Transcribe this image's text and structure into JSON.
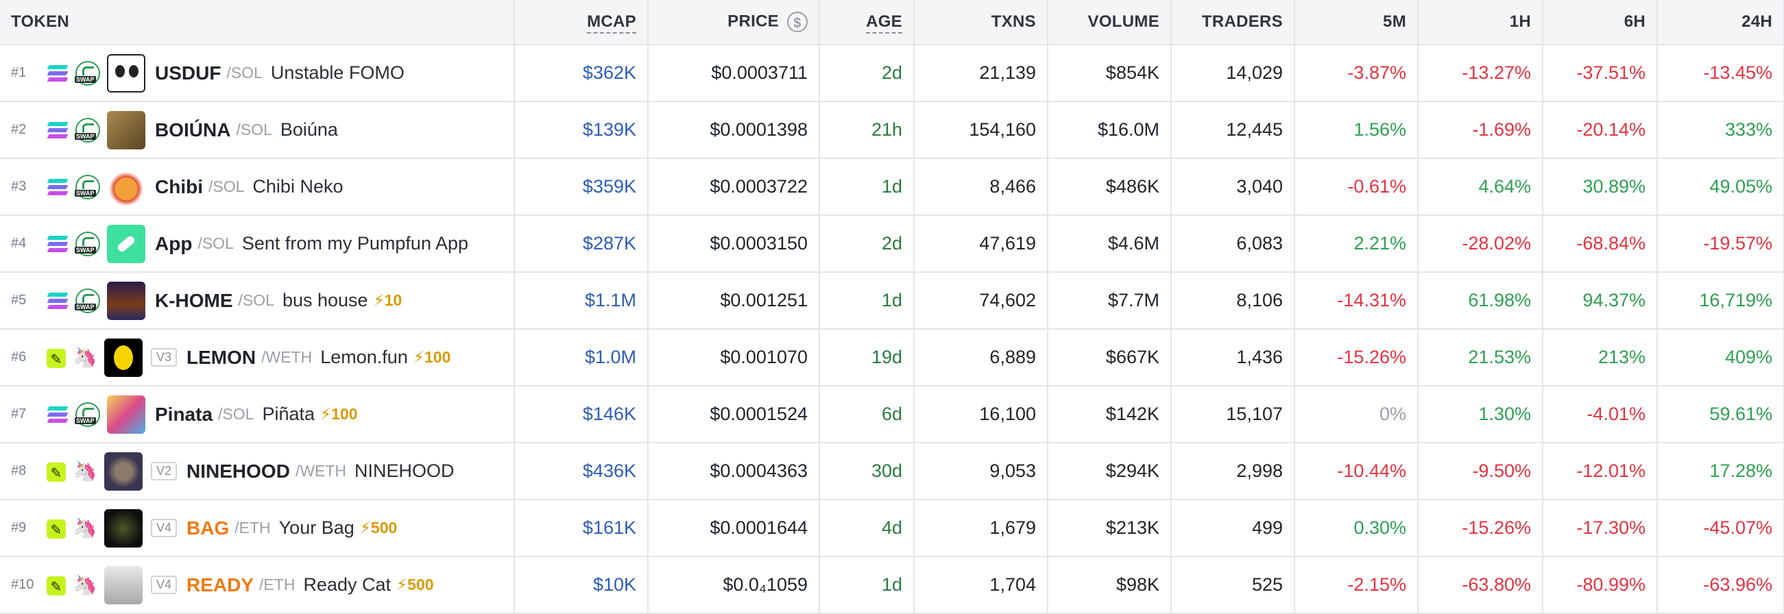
{
  "columns": {
    "token": "TOKEN",
    "mcap": "MCAP",
    "price": "PRICE",
    "age": "AGE",
    "txns": "TXNS",
    "volume": "VOLUME",
    "traders": "TRADERS",
    "m5": "5M",
    "h1": "1H",
    "h6": "6H",
    "h24": "24H",
    "price_currency_icon": "$"
  },
  "rows": [
    {
      "rank": "#1",
      "chain": "solana-icon",
      "dex": "swap-icon",
      "version": "",
      "symbol": "USDUF",
      "quote": "/SOL",
      "name": "Unstable FOMO",
      "boost": "",
      "mcap": "$362K",
      "price": "$0.0003711",
      "age": "2d",
      "txns": "21,139",
      "volume": "$854K",
      "traders": "14,029",
      "m5": "-3.87%",
      "h1": "-13.27%",
      "h6": "-37.51%",
      "h24": "-13.45%"
    },
    {
      "rank": "#2",
      "chain": "solana-icon",
      "dex": "swap-icon",
      "version": "",
      "symbol": "BOIÚNA",
      "quote": "/SOL",
      "name": "Boiúna",
      "boost": "",
      "mcap": "$139K",
      "price": "$0.0001398",
      "age": "21h",
      "txns": "154,160",
      "volume": "$16.0M",
      "traders": "12,445",
      "m5": "1.56%",
      "h1": "-1.69%",
      "h6": "-20.14%",
      "h24": "333%"
    },
    {
      "rank": "#3",
      "chain": "solana-icon",
      "dex": "swap-icon",
      "version": "",
      "symbol": "Chibi",
      "quote": "/SOL",
      "name": "Chibi Neko",
      "boost": "",
      "mcap": "$359K",
      "price": "$0.0003722",
      "age": "1d",
      "txns": "8,466",
      "volume": "$486K",
      "traders": "3,040",
      "m5": "-0.61%",
      "h1": "4.64%",
      "h6": "30.89%",
      "h24": "49.05%"
    },
    {
      "rank": "#4",
      "chain": "solana-icon",
      "dex": "swap-icon",
      "version": "",
      "symbol": "App",
      "quote": "/SOL",
      "name": "Sent from my Pumpfun App",
      "boost": "",
      "mcap": "$287K",
      "price": "$0.0003150",
      "age": "2d",
      "txns": "47,619",
      "volume": "$4.6M",
      "traders": "6,083",
      "m5": "2.21%",
      "h1": "-28.02%",
      "h6": "-68.84%",
      "h24": "-19.57%"
    },
    {
      "rank": "#5",
      "chain": "solana-icon",
      "dex": "swap-icon",
      "version": "",
      "symbol": "K-HOME",
      "quote": "/SOL",
      "name": "bus house",
      "boost": "⚡10",
      "mcap": "$1.1M",
      "price": "$0.001251",
      "age": "1d",
      "txns": "74,602",
      "volume": "$7.7M",
      "traders": "8,106",
      "m5": "-14.31%",
      "h1": "61.98%",
      "h6": "94.37%",
      "h24": "16,719%"
    },
    {
      "rank": "#6",
      "chain": "base-icon",
      "dex": "uniswap-icon",
      "version": "V3",
      "symbol": "LEMON",
      "quote": "/WETH",
      "name": "Lemon.fun",
      "boost": "⚡100",
      "mcap": "$1.0M",
      "price": "$0.001070",
      "age": "19d",
      "txns": "6,889",
      "volume": "$667K",
      "traders": "1,436",
      "m5": "-15.26%",
      "h1": "21.53%",
      "h6": "213%",
      "h24": "409%"
    },
    {
      "rank": "#7",
      "chain": "solana-icon",
      "dex": "swap-icon",
      "version": "",
      "symbol": "Pinata",
      "quote": "/SOL",
      "name": "Piñata",
      "boost": "⚡100",
      "mcap": "$146K",
      "price": "$0.0001524",
      "age": "6d",
      "txns": "16,100",
      "volume": "$142K",
      "traders": "15,107",
      "m5": "0%",
      "h1": "1.30%",
      "h6": "-4.01%",
      "h24": "59.61%"
    },
    {
      "rank": "#8",
      "chain": "base-icon",
      "dex": "uniswap-icon",
      "version": "V2",
      "symbol": "NINEHOOD",
      "quote": "/WETH",
      "name": "NINEHOOD",
      "boost": "",
      "mcap": "$436K",
      "price": "$0.0004363",
      "age": "30d",
      "txns": "9,053",
      "volume": "$294K",
      "traders": "2,998",
      "m5": "-10.44%",
      "h1": "-9.50%",
      "h6": "-12.01%",
      "h24": "17.28%"
    },
    {
      "rank": "#9",
      "chain": "base-icon",
      "dex": "uniswap-icon",
      "version": "V4",
      "symbol": "BAG",
      "quote": "/ETH",
      "name": "Your Bag",
      "boost": "⚡500",
      "mcap": "$161K",
      "price": "$0.0001644",
      "age": "4d",
      "txns": "1,679",
      "volume": "$213K",
      "traders": "499",
      "m5": "0.30%",
      "h1": "-15.26%",
      "h6": "-17.30%",
      "h24": "-45.07%"
    },
    {
      "rank": "#10",
      "chain": "base-icon",
      "dex": "uniswap-icon",
      "version": "V4",
      "symbol": "READY",
      "quote": "/ETH",
      "name": "Ready Cat",
      "boost": "⚡500",
      "mcap": "$10K",
      "price": "$0.0₄1059",
      "age": "1d",
      "txns": "1,704",
      "volume": "$98K",
      "traders": "525",
      "m5": "-2.15%",
      "h1": "-63.80%",
      "h6": "-80.99%",
      "h24": "-63.96%"
    }
  ],
  "colors": {
    "positive": "#2ea052",
    "negative": "#e53340",
    "mcap": "#2d5db5",
    "boosted_symbol": "#f07a12"
  }
}
